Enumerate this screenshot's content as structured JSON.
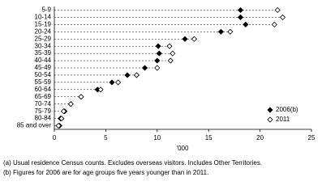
{
  "chart_data": {
    "type": "dot",
    "categories": [
      "5-9",
      "10-14",
      "15-19",
      "20-24",
      "25-29",
      "30-34",
      "35-39",
      "40-44",
      "45-49",
      "50-54",
      "55-59",
      "60-64",
      "65-69",
      "70-74",
      "75-79",
      "80-84",
      "85 and over"
    ],
    "series": [
      {
        "name": "2006(b)",
        "color": "#000000",
        "marker": "filled",
        "values": [
          18.1,
          18.1,
          18.6,
          16.2,
          12.7,
          10.1,
          10.2,
          10.0,
          8.8,
          7.1,
          5.6,
          4.2,
          2.6,
          1.6,
          1.0,
          0.6,
          0.5
        ]
      },
      {
        "name": "2011",
        "color": "#000000",
        "marker": "open",
        "values": [
          21.7,
          22.2,
          21.4,
          17.1,
          13.6,
          11.2,
          11.5,
          11.3,
          10.0,
          8.0,
          6.2,
          4.5,
          2.6,
          1.6,
          0.9,
          0.7,
          0.4
        ]
      }
    ],
    "xlabel": "'000",
    "xlim": [
      0,
      25
    ],
    "xticks": [
      0,
      5,
      10,
      15,
      20,
      25
    ],
    "footnotes": [
      "(a) Usual residence Census counts. Excludes overseas visitors. Includes Other Territories.",
      "(b) Figures for 2006 are for age groups five years younger than in 2011."
    ]
  }
}
